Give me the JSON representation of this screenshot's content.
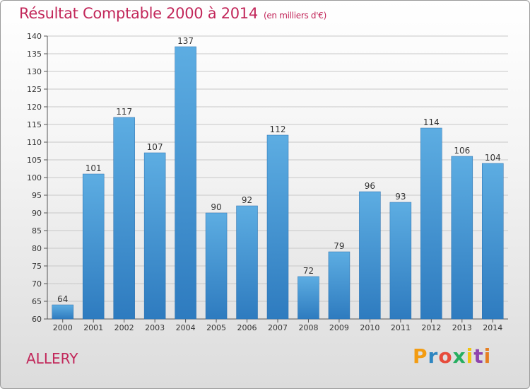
{
  "page": {
    "title_main": "Résultat Comptable 2000 à 2014",
    "title_unit": "(en milliers d'€)",
    "city": "ALLERY",
    "logo_text": "Proxiti",
    "logo_colors": [
      "#f39c12",
      "#2e86c1",
      "#e74c3c",
      "#27ae60",
      "#f1c40f",
      "#8e44ad",
      "#e67e22"
    ],
    "title_color": "#c2275a",
    "bar_color_top": "#5dade2",
    "bar_color_bottom": "#2e7bbf"
  },
  "chart_data": {
    "type": "bar",
    "title": "Résultat Comptable 2000 à 2014 (en milliers d'€)",
    "xlabel": "",
    "ylabel": "",
    "categories": [
      "2000",
      "2001",
      "2002",
      "2003",
      "2004",
      "2005",
      "2006",
      "2007",
      "2008",
      "2009",
      "2010",
      "2011",
      "2012",
      "2013",
      "2014"
    ],
    "values": [
      64,
      101,
      117,
      107,
      137,
      90,
      92,
      112,
      72,
      79,
      96,
      93,
      114,
      106,
      104
    ],
    "value_labels": [
      "64",
      "101",
      "117",
      "107",
      "137",
      "90",
      "92",
      "112",
      "72",
      "79",
      "96",
      "93",
      "114",
      "106",
      "104"
    ],
    "ylim": [
      60,
      140
    ],
    "yticks": [
      60,
      65,
      70,
      75,
      80,
      85,
      90,
      95,
      100,
      105,
      110,
      115,
      120,
      125,
      130,
      135,
      140
    ],
    "ytick_labels": [
      "60",
      "65",
      "70",
      "75",
      "80",
      "85",
      "90",
      "95",
      "100",
      "105",
      "110",
      "115",
      "120",
      "125",
      "130",
      "135",
      "140"
    ],
    "grid": true
  }
}
